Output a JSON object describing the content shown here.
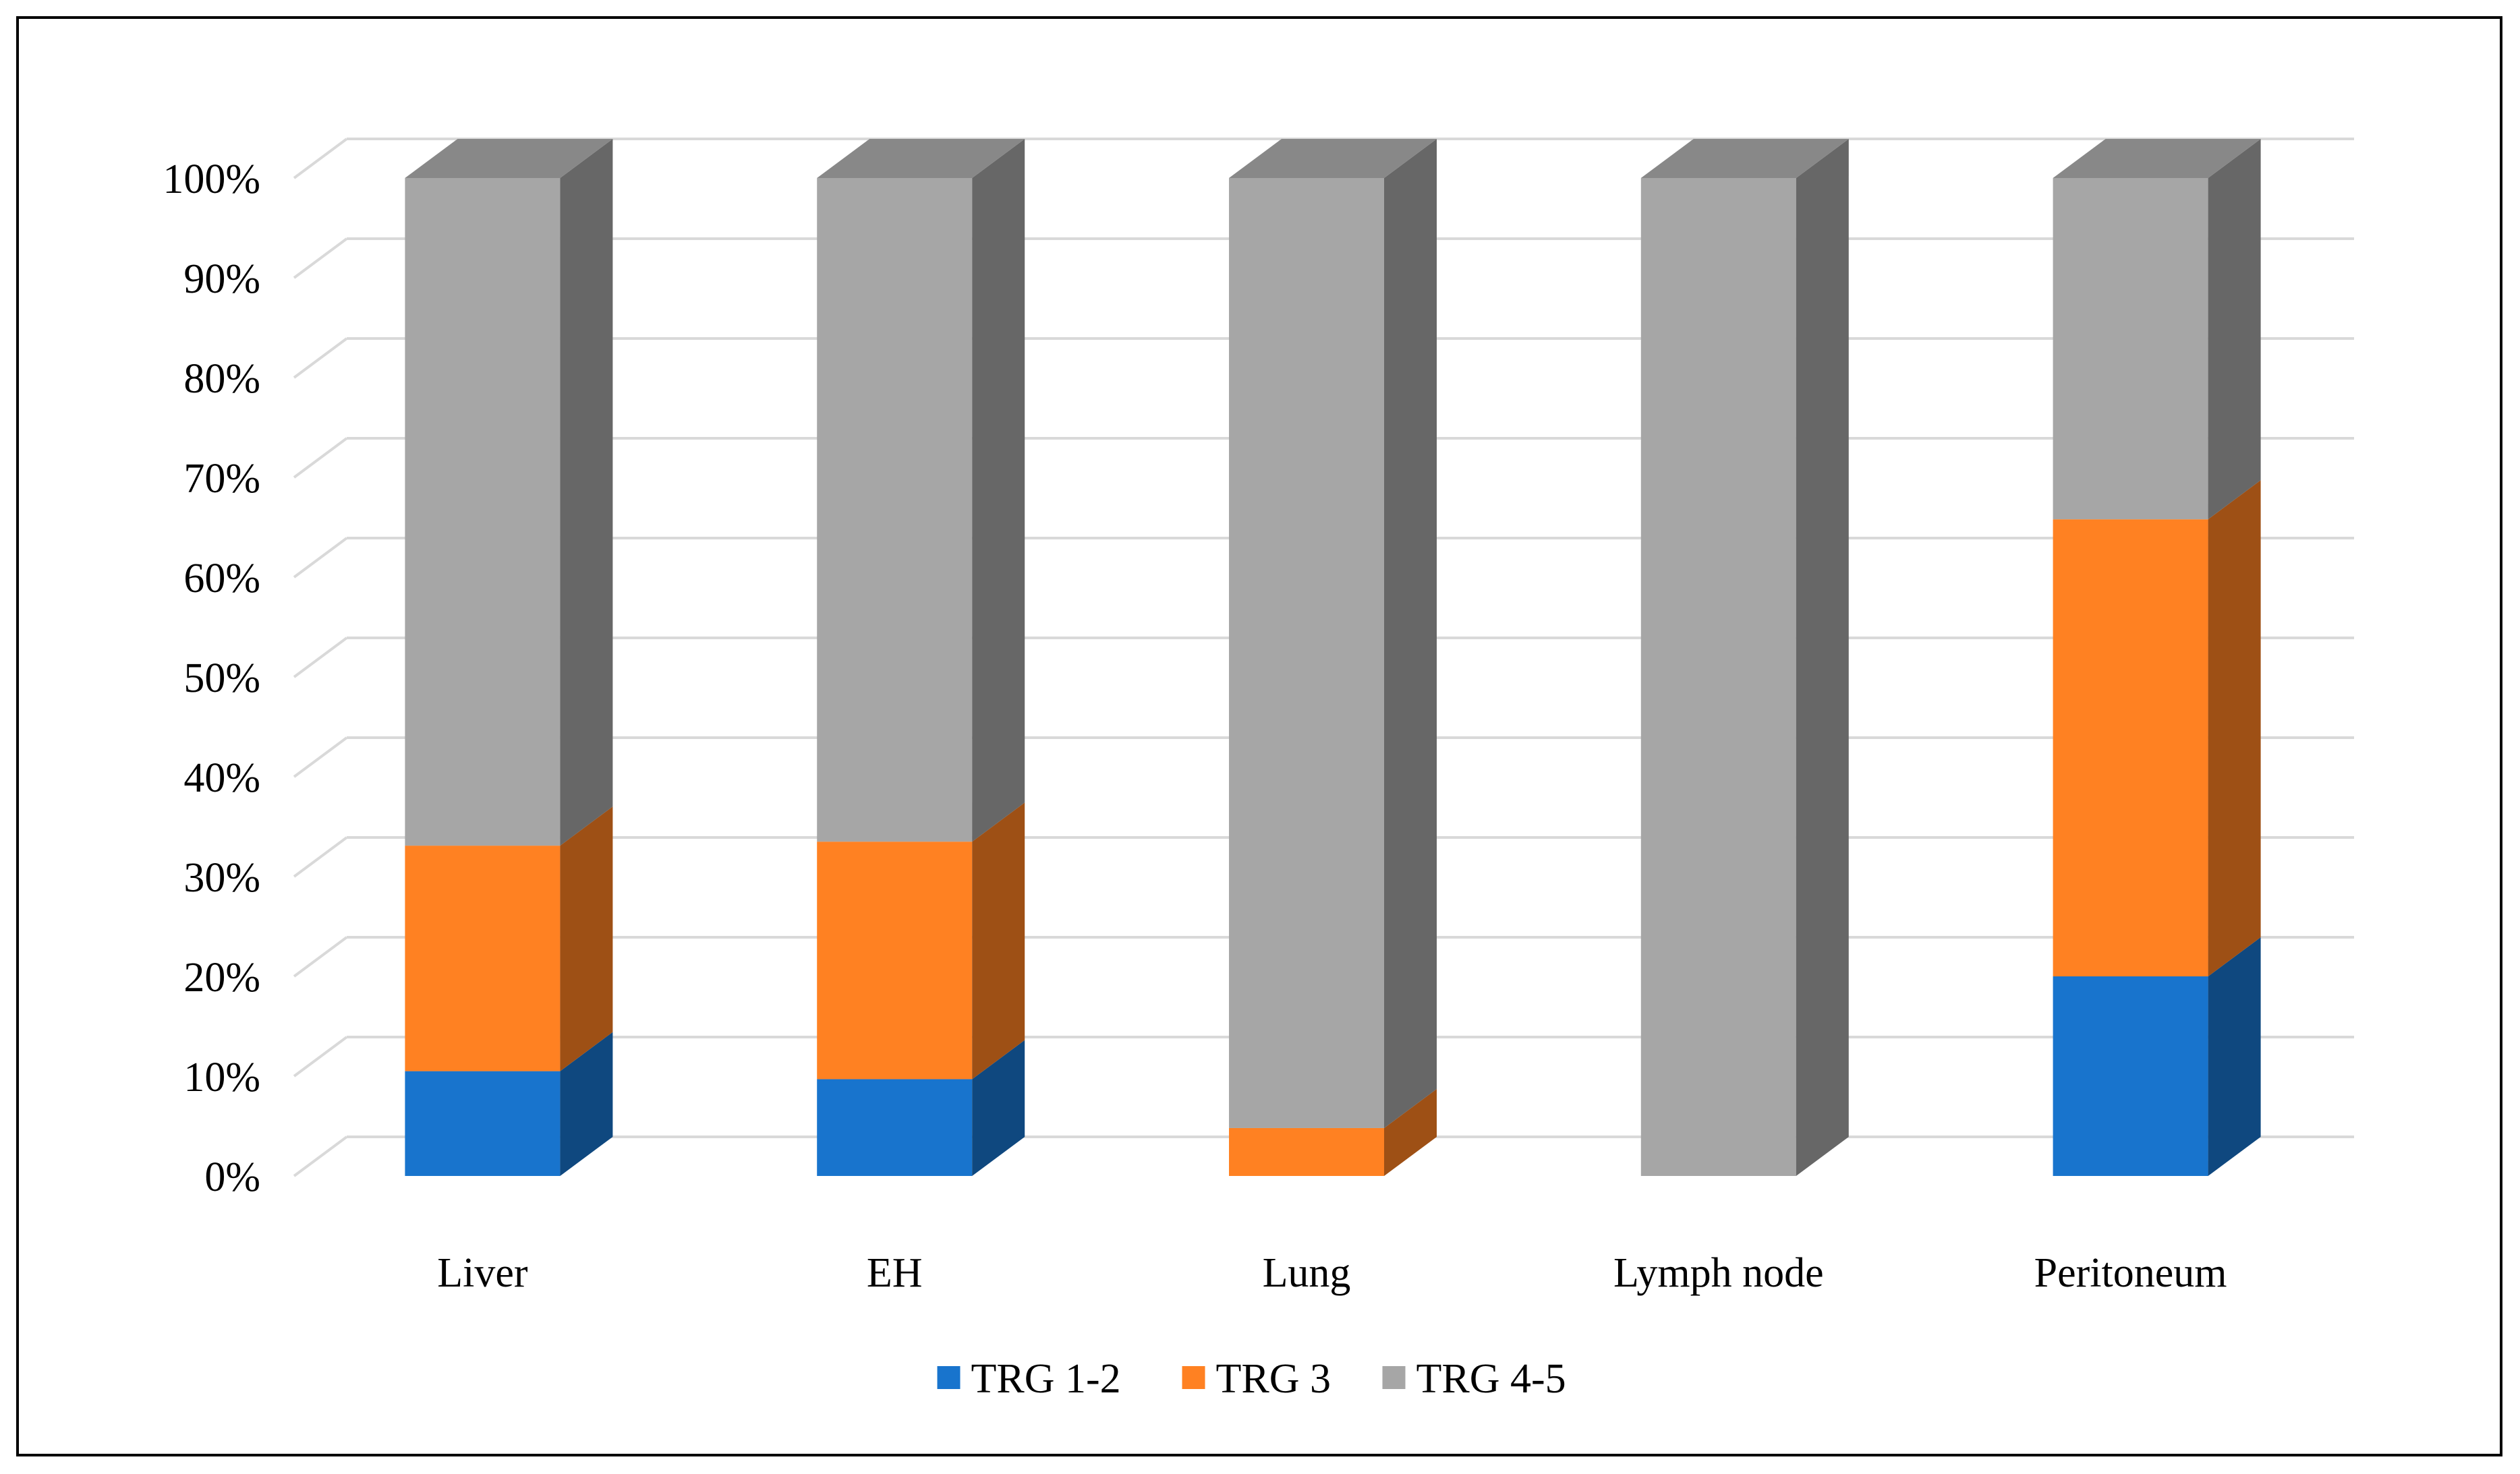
{
  "chart_data": {
    "type": "bar",
    "stacked": true,
    "percent_stacked": true,
    "style": "3d-column",
    "categories": [
      "Liver",
      "EH",
      "Lung",
      "Lymph node",
      "Peritoneum"
    ],
    "series": [
      {
        "name": "TRG 1-2",
        "values": [
          10.5,
          9.7,
          0,
          0,
          20
        ],
        "color": "#1874CD"
      },
      {
        "name": "TRG 3",
        "values": [
          22.6,
          23.8,
          4.8,
          0,
          45.8
        ],
        "color": "#FF8122"
      },
      {
        "name": "TRG 4-5",
        "values": [
          66.9,
          66.5,
          95.2,
          100,
          34.2
        ],
        "color": "#A6A6A6"
      }
    ],
    "ylim": [
      0,
      100
    ],
    "yticks": [
      "0%",
      "10%",
      "20%",
      "30%",
      "40%",
      "50%",
      "60%",
      "70%",
      "80%",
      "90%",
      "100%"
    ],
    "grid": true,
    "legend_position": "bottom"
  }
}
